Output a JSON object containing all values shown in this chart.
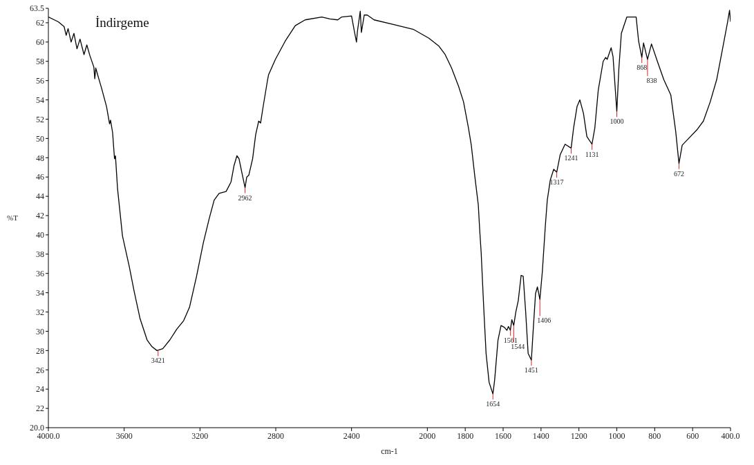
{
  "chart_data": {
    "type": "line",
    "title": "İndirgeme",
    "xlabel": "cm-1",
    "ylabel": "%T",
    "xlim": [
      4000,
      400
    ],
    "xticks": [
      {
        "value": 4000,
        "label": "4000.0"
      },
      3600,
      3200,
      2800,
      2400,
      2000,
      1800,
      1600,
      1400,
      1200,
      1000,
      800,
      600,
      {
        "value": 400,
        "label": "400.0"
      }
    ],
    "ylim": [
      20,
      63.5
    ],
    "yticks": [
      {
        "value": 20,
        "label": "20.0"
      },
      22,
      24,
      26,
      28,
      30,
      32,
      34,
      36,
      38,
      40,
      42,
      44,
      46,
      48,
      50,
      52,
      54,
      56,
      58,
      60,
      62,
      {
        "value": 63.5,
        "label": "63.5"
      }
    ],
    "marker": "none",
    "line_style": "solid",
    "series": [
      {
        "color": "#000000",
        "x": [
          4000,
          3948,
          3917,
          3906,
          3896,
          3880,
          3865,
          3849,
          3833,
          3812,
          3797,
          3781,
          3760,
          3755,
          3750,
          3734,
          3719,
          3693,
          3677,
          3672,
          3661,
          3651,
          3646,
          3635,
          3609,
          3573,
          3547,
          3516,
          3479,
          3453,
          3427,
          3396,
          3359,
          3323,
          3286,
          3255,
          3218,
          3182,
          3151,
          3125,
          3099,
          3062,
          3036,
          3020,
          3005,
          2994,
          2974,
          2962,
          2953,
          2942,
          2922,
          2906,
          2890,
          2880,
          2869,
          2843,
          2838,
          2802,
          2750,
          2697,
          2645,
          2557,
          2515,
          2473,
          2452,
          2400,
          2385,
          2374,
          2369,
          2354,
          2348,
          2333,
          2317,
          2281,
          2176,
          2072,
          1992,
          1940,
          1906,
          1872,
          1835,
          1809,
          1783,
          1768,
          1749,
          1731,
          1723,
          1716,
          1703,
          1690,
          1674,
          1654,
          1645,
          1627,
          1611,
          1593,
          1580,
          1572,
          1562,
          1554,
          1544,
          1533,
          1520,
          1505,
          1494,
          1481,
          1468,
          1451,
          1442,
          1429,
          1419,
          1406,
          1393,
          1377,
          1367,
          1351,
          1333,
          1317,
          1299,
          1273,
          1241,
          1228,
          1210,
          1195,
          1176,
          1158,
          1131,
          1116,
          1098,
          1072,
          1059,
          1051,
          1030,
          1020,
          1000,
          989,
          976,
          947,
          898,
          885,
          868,
          859,
          838,
          817,
          786,
          752,
          715,
          689,
          672,
          655,
          621,
          577,
          543,
          507,
          473,
          439,
          416,
          405,
          400
        ],
        "values": [
          62.6,
          62.1,
          61.6,
          60.7,
          61.4,
          60.0,
          60.9,
          59.3,
          60.3,
          58.7,
          59.7,
          58.6,
          57.4,
          56.2,
          57.3,
          56.2,
          55.2,
          53.3,
          51.5,
          51.9,
          50.6,
          47.9,
          48.2,
          44.8,
          39.9,
          36.7,
          34.1,
          31.3,
          29.1,
          28.4,
          28.0,
          28.2,
          29.1,
          30.2,
          31.1,
          32.5,
          35.7,
          39.2,
          41.7,
          43.6,
          44.3,
          44.5,
          45.5,
          47.2,
          48.2,
          47.9,
          46.0,
          44.9,
          46.0,
          46.2,
          47.9,
          50.4,
          51.8,
          51.6,
          53.0,
          56.1,
          56.6,
          58.2,
          60.1,
          61.7,
          62.3,
          62.6,
          62.4,
          62.3,
          62.6,
          62.7,
          61.1,
          60.0,
          61.1,
          63.2,
          61.0,
          62.8,
          62.8,
          62.3,
          61.8,
          61.3,
          60.4,
          59.6,
          58.7,
          57.3,
          55.4,
          53.8,
          51.1,
          49.3,
          46.0,
          43.1,
          40.3,
          38.2,
          32.7,
          27.7,
          24.7,
          23.5,
          24.9,
          29.1,
          30.6,
          30.4,
          30.1,
          30.5,
          30.1,
          31.2,
          30.6,
          32.0,
          33.2,
          35.8,
          35.7,
          32.0,
          27.7,
          27.0,
          29.9,
          33.9,
          34.6,
          33.3,
          36.2,
          41.0,
          43.6,
          45.7,
          46.8,
          46.5,
          48.3,
          49.4,
          49.0,
          51.1,
          53.3,
          54.0,
          52.6,
          50.2,
          49.4,
          51.1,
          55.0,
          58.0,
          58.4,
          58.2,
          59.4,
          58.5,
          52.8,
          57.3,
          60.9,
          62.6,
          62.6,
          60.1,
          58.4,
          59.9,
          58.2,
          59.8,
          58.0,
          56.1,
          54.5,
          50.7,
          47.4,
          49.3,
          50.0,
          50.9,
          51.8,
          53.8,
          56.1,
          59.6,
          62.0,
          63.3,
          62.1
        ]
      }
    ],
    "annotations": [
      {
        "text": "3421",
        "x": 3421,
        "y": 28.0
      },
      {
        "text": "2962",
        "x": 2962,
        "y": 44.9
      },
      {
        "text": "1654",
        "x": 1654,
        "y": 23.5
      },
      {
        "text": "1561",
        "x": 1561,
        "y": 30.1
      },
      {
        "text": "1544",
        "x": 1544,
        "y": 30.6
      },
      {
        "text": "1451",
        "x": 1451,
        "y": 27.0
      },
      {
        "text": "1406",
        "x": 1406,
        "y": 33.3
      },
      {
        "text": "1317",
        "x": 1317,
        "y": 46.5
      },
      {
        "text": "1241",
        "x": 1241,
        "y": 49.0
      },
      {
        "text": "1131",
        "x": 1131,
        "y": 49.4
      },
      {
        "text": "1000",
        "x": 1000,
        "y": 52.8
      },
      {
        "text": "868",
        "x": 868,
        "y": 58.4
      },
      {
        "text": "838",
        "x": 838,
        "y": 58.2
      },
      {
        "text": "672",
        "x": 672,
        "y": 47.4
      }
    ]
  }
}
